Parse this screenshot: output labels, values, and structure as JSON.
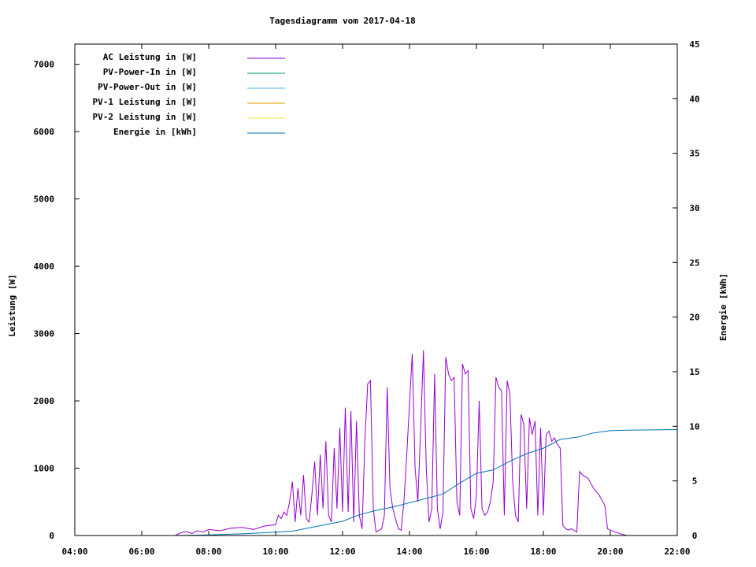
{
  "chart_data": {
    "type": "line",
    "title": "Tagesdiagramm vom 2017-04-18",
    "ylabel": "Leistung [W]",
    "y2label": "Energie [kWh]",
    "xlabel": "",
    "xlim": [
      "04:00",
      "22:00"
    ],
    "ylim": [
      0,
      7300
    ],
    "y2lim": [
      0,
      45
    ],
    "x_ticks": [
      "04:00",
      "06:00",
      "08:00",
      "10:00",
      "12:00",
      "14:00",
      "16:00",
      "18:00",
      "20:00",
      "22:00"
    ],
    "y_ticks": [
      "0",
      "1000",
      "2000",
      "3000",
      "4000",
      "5000",
      "6000",
      "7000"
    ],
    "y2_ticks": [
      "0",
      "5",
      "10",
      "15",
      "20",
      "25",
      "30",
      "35",
      "40",
      "45"
    ],
    "grid": false,
    "legend_position": "top-left",
    "series": [
      {
        "name": "AC Leistung in [W]",
        "axis": "left",
        "color": "#9400d3",
        "points": [
          [
            "07:00",
            0
          ],
          [
            "07:10",
            40
          ],
          [
            "07:20",
            60
          ],
          [
            "07:30",
            30
          ],
          [
            "07:40",
            70
          ],
          [
            "07:50",
            50
          ],
          [
            "08:00",
            90
          ],
          [
            "08:20",
            70
          ],
          [
            "08:40",
            110
          ],
          [
            "09:00",
            120
          ],
          [
            "09:20",
            90
          ],
          [
            "09:40",
            140
          ],
          [
            "10:00",
            160
          ],
          [
            "10:05",
            300
          ],
          [
            "10:10",
            250
          ],
          [
            "10:15",
            350
          ],
          [
            "10:20",
            300
          ],
          [
            "10:25",
            500
          ],
          [
            "10:30",
            800
          ],
          [
            "10:35",
            200
          ],
          [
            "10:40",
            700
          ],
          [
            "10:45",
            300
          ],
          [
            "10:50",
            900
          ],
          [
            "10:55",
            250
          ],
          [
            "11:00",
            200
          ],
          [
            "11:05",
            600
          ],
          [
            "11:10",
            1100
          ],
          [
            "11:15",
            300
          ],
          [
            "11:20",
            1200
          ],
          [
            "11:25",
            400
          ],
          [
            "11:30",
            1400
          ],
          [
            "11:35",
            300
          ],
          [
            "11:40",
            200
          ],
          [
            "11:45",
            1300
          ],
          [
            "11:50",
            400
          ],
          [
            "11:55",
            1600
          ],
          [
            "12:00",
            350
          ],
          [
            "12:05",
            1900
          ],
          [
            "12:10",
            350
          ],
          [
            "12:15",
            1850
          ],
          [
            "12:20",
            200
          ],
          [
            "12:25",
            1700
          ],
          [
            "12:30",
            300
          ],
          [
            "12:35",
            100
          ],
          [
            "12:40",
            1400
          ],
          [
            "12:45",
            2250
          ],
          [
            "12:50",
            2300
          ],
          [
            "12:55",
            400
          ],
          [
            "13:00",
            50
          ],
          [
            "13:10",
            100
          ],
          [
            "13:15",
            300
          ],
          [
            "13:20",
            2200
          ],
          [
            "13:25",
            700
          ],
          [
            "13:30",
            400
          ],
          [
            "13:40",
            100
          ],
          [
            "13:45",
            80
          ],
          [
            "13:50",
            500
          ],
          [
            "13:55",
            1200
          ],
          [
            "14:05",
            2700
          ],
          [
            "14:10",
            1000
          ],
          [
            "14:15",
            500
          ],
          [
            "14:20",
            1600
          ],
          [
            "14:25",
            2750
          ],
          [
            "14:30",
            1000
          ],
          [
            "14:35",
            200
          ],
          [
            "14:40",
            400
          ],
          [
            "14:45",
            2400
          ],
          [
            "14:50",
            400
          ],
          [
            "14:55",
            100
          ],
          [
            "15:00",
            350
          ],
          [
            "15:05",
            2650
          ],
          [
            "15:10",
            2400
          ],
          [
            "15:15",
            2300
          ],
          [
            "15:20",
            2350
          ],
          [
            "15:25",
            500
          ],
          [
            "15:30",
            300
          ],
          [
            "15:35",
            2550
          ],
          [
            "15:40",
            2400
          ],
          [
            "15:45",
            2450
          ],
          [
            "15:50",
            400
          ],
          [
            "15:55",
            250
          ],
          [
            "16:00",
            600
          ],
          [
            "16:05",
            2000
          ],
          [
            "16:10",
            400
          ],
          [
            "16:15",
            300
          ],
          [
            "16:20",
            350
          ],
          [
            "16:25",
            500
          ],
          [
            "16:30",
            800
          ],
          [
            "16:35",
            2350
          ],
          [
            "16:40",
            2200
          ],
          [
            "16:45",
            2150
          ],
          [
            "16:50",
            300
          ],
          [
            "16:55",
            2300
          ],
          [
            "17:00",
            2100
          ],
          [
            "17:05",
            800
          ],
          [
            "17:10",
            300
          ],
          [
            "17:15",
            200
          ],
          [
            "17:20",
            1800
          ],
          [
            "17:25",
            1650
          ],
          [
            "17:30",
            400
          ],
          [
            "17:35",
            1750
          ],
          [
            "17:40",
            1500
          ],
          [
            "17:45",
            1700
          ],
          [
            "17:50",
            300
          ],
          [
            "17:55",
            1600
          ],
          [
            "18:00",
            300
          ],
          [
            "18:05",
            1500
          ],
          [
            "18:10",
            1550
          ],
          [
            "18:15",
            1400
          ],
          [
            "18:20",
            1450
          ],
          [
            "18:25",
            1350
          ],
          [
            "18:30",
            1300
          ],
          [
            "18:35",
            150
          ],
          [
            "18:40",
            100
          ],
          [
            "18:45",
            80
          ],
          [
            "18:50",
            100
          ],
          [
            "19:00",
            50
          ],
          [
            "19:05",
            950
          ],
          [
            "19:10",
            900
          ],
          [
            "19:20",
            850
          ],
          [
            "19:30",
            700
          ],
          [
            "19:40",
            600
          ],
          [
            "19:50",
            450
          ],
          [
            "19:55",
            100
          ],
          [
            "20:00",
            80
          ],
          [
            "20:10",
            50
          ],
          [
            "20:20",
            20
          ],
          [
            "20:30",
            0
          ]
        ]
      },
      {
        "name": "PV-Power-In in [W]",
        "axis": "left",
        "color": "#009e73",
        "points": []
      },
      {
        "name": "PV-Power-Out in [W]",
        "axis": "left",
        "color": "#56b4e9",
        "points": []
      },
      {
        "name": "PV-1 Leistung in [W]",
        "axis": "left",
        "color": "#e69f00",
        "points": []
      },
      {
        "name": "PV-2 Leistung in [W]",
        "axis": "left",
        "color": "#f0e442",
        "points": []
      },
      {
        "name": "Energie in [kWh]",
        "axis": "right",
        "color": "#0072b2",
        "points": [
          [
            "07:00",
            0.0
          ],
          [
            "08:00",
            0.05
          ],
          [
            "09:00",
            0.15
          ],
          [
            "10:00",
            0.3
          ],
          [
            "10:30",
            0.4
          ],
          [
            "11:00",
            0.7
          ],
          [
            "11:30",
            1.0
          ],
          [
            "12:00",
            1.3
          ],
          [
            "12:30",
            1.9
          ],
          [
            "13:00",
            2.3
          ],
          [
            "13:30",
            2.6
          ],
          [
            "14:00",
            3.0
          ],
          [
            "14:30",
            3.4
          ],
          [
            "15:00",
            3.8
          ],
          [
            "15:30",
            4.8
          ],
          [
            "16:00",
            5.7
          ],
          [
            "16:30",
            6.0
          ],
          [
            "17:00",
            6.8
          ],
          [
            "17:30",
            7.5
          ],
          [
            "18:00",
            8.0
          ],
          [
            "18:30",
            8.8
          ],
          [
            "19:00",
            9.0
          ],
          [
            "19:30",
            9.4
          ],
          [
            "20:00",
            9.6
          ],
          [
            "20:30",
            9.65
          ],
          [
            "22:00",
            9.7
          ]
        ]
      }
    ]
  }
}
